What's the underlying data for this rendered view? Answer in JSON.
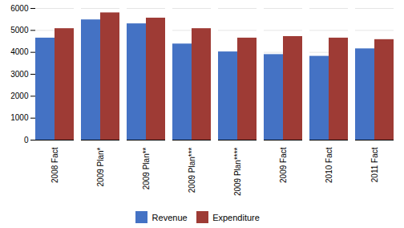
{
  "chart_data": {
    "type": "bar",
    "categories": [
      "2008 Fact",
      "2009 Plan*",
      "2009 Plan**",
      "2009 Plan***",
      "2009 Plan****",
      "2009 Fact",
      "2010 Fact",
      "2011 Fact"
    ],
    "series": [
      {
        "name": "Revenue",
        "color": "#4472c4",
        "values": [
          4650,
          5480,
          5300,
          4380,
          4020,
          3900,
          3820,
          4160
        ]
      },
      {
        "name": "Expenditure",
        "color": "#9e3b35",
        "values": [
          5080,
          5800,
          5560,
          5080,
          4650,
          4720,
          4650,
          4580
        ]
      }
    ],
    "ylim": [
      0,
      6000
    ],
    "yticks": [
      0,
      1000,
      2000,
      3000,
      4000,
      5000,
      6000
    ],
    "grid": true,
    "legend": "bottom"
  }
}
